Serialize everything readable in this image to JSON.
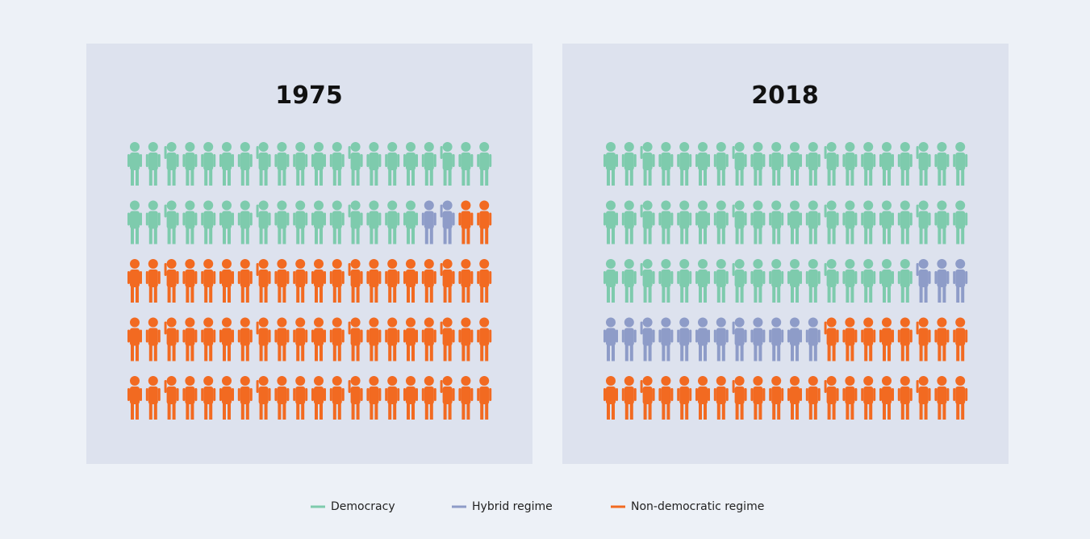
{
  "chart_data": [
    {
      "type": "pictogram",
      "title": "1975",
      "categories": [
        "Democracy",
        "Hybrid regime",
        "Non-democratic regime"
      ],
      "values": [
        36,
        2,
        62
      ],
      "colors": [
        "#7ecbad",
        "#8e9cc8",
        "#f26a21"
      ]
    },
    {
      "type": "pictogram",
      "title": "2018",
      "categories": [
        "Democracy",
        "Hybrid regime",
        "Non-democratic regime"
      ],
      "values": [
        57,
        15,
        28
      ],
      "colors": [
        "#7ecbad",
        "#8e9cc8",
        "#f26a21"
      ]
    }
  ]
}
